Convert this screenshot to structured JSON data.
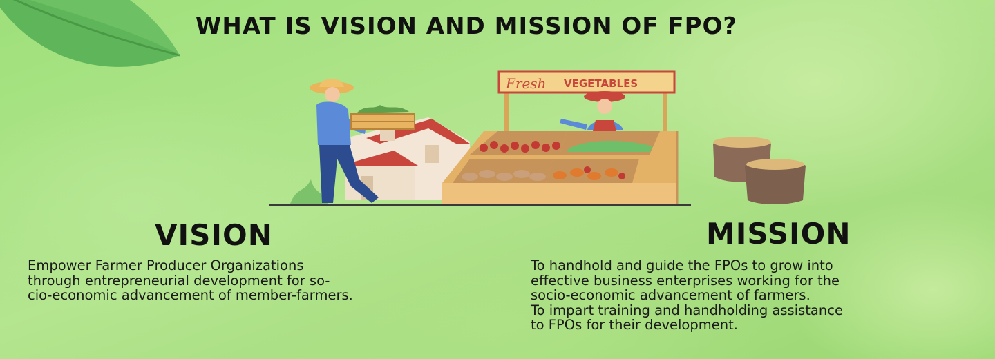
{
  "title": "WHAT IS VISION AND MISSION  OF FPO?",
  "illustration": {
    "sign_script": "Fresh",
    "sign_bold": "VEGETABLES"
  },
  "vision": {
    "heading": "VISION",
    "lines": [
      "Empower Farmer Producer Organizations",
      "through entrepreneurial development for so-",
      "cio-economic advancement of member-farmers."
    ]
  },
  "mission": {
    "heading": "MISSION",
    "lines": [
      "To handhold and guide the FPOs to grow into",
      "effective business enterprises working for the",
      "socio-economic advancement of farmers.",
      "To impart training and handholding assistance",
      "to FPOs for their development."
    ]
  },
  "colors": {
    "background": "#a8de82",
    "text": "#111111",
    "leaf": "#5fb55a",
    "stall_wood": "#e3b267",
    "roof": "#c8463b"
  }
}
